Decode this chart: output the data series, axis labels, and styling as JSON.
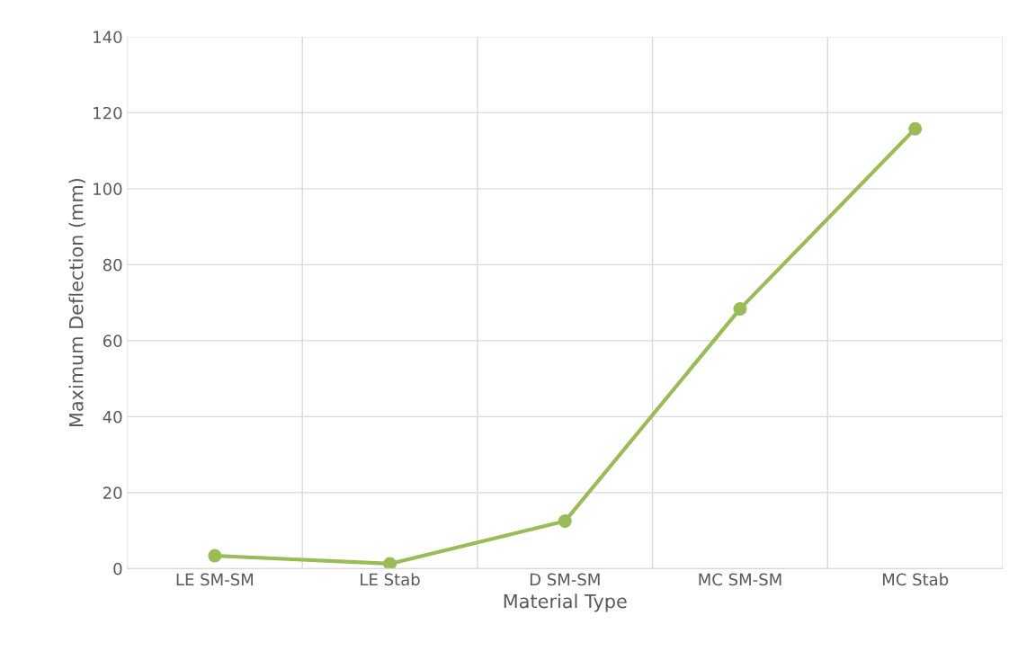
{
  "chart_data": {
    "type": "line",
    "xlabel": "Material Type",
    "ylabel": "Maximum Deflection (mm)",
    "categories": [
      "LE SM-SM",
      "LE Stab",
      "D SM-SM",
      "MC SM-SM",
      "MC Stab"
    ],
    "series": [
      {
        "color": "#9bbb59",
        "values": [
          3.4,
          1.3,
          12.5,
          68.4,
          115.8
        ]
      }
    ],
    "ylim": [
      0,
      140
    ],
    "yticks": [
      0,
      20,
      40,
      60,
      80,
      100,
      120,
      140
    ],
    "grid": true,
    "marker": "circle",
    "line_style": "solid"
  }
}
